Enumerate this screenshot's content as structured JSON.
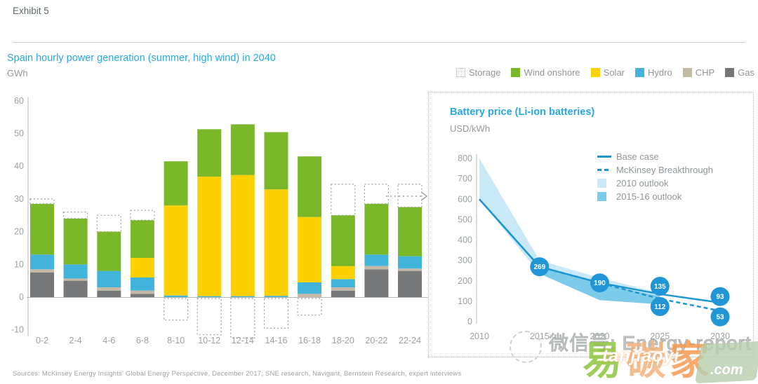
{
  "page": {
    "exhibit_label": "Exhibit 5"
  },
  "gen_chart": {
    "title": "Spain hourly power generation (summer, high wind) in 2040",
    "unit": "GWh",
    "legend": [
      {
        "label": "Storage",
        "type": "dotted",
        "color": "#ffffff"
      },
      {
        "label": "Wind onshore",
        "type": "solid",
        "color": "#7ab829"
      },
      {
        "label": "Solar",
        "type": "solid",
        "color": "#fdd000"
      },
      {
        "label": "Hydro",
        "type": "solid",
        "color": "#42b4dc"
      },
      {
        "label": "CHP",
        "type": "solid",
        "color": "#c5b8a5"
      },
      {
        "label": "Gas",
        "type": "solid",
        "color": "#757779"
      }
    ]
  },
  "battery_panel": {
    "title": "Battery price (Li-ion batteries)",
    "unit": "USD/kWh",
    "legend": [
      {
        "label": "Base case",
        "type": "line"
      },
      {
        "label": "McKinsey Breakthrough",
        "type": "dashed-line"
      },
      {
        "label": "2010 outlook",
        "type": "square",
        "color": "#c9e8f8"
      },
      {
        "label": "2015-16 outlook",
        "type": "square",
        "color": "#7ccbeb"
      }
    ]
  },
  "footer": {
    "sources": "Sources: McKinsey Energy Insights' Global Energy Perspective, December 2017; SNE research, Navigant, Bernstein Research, expert interviews"
  },
  "watermarks": {
    "wechat": "微信号: Energy-report",
    "glyph1": "易",
    "glyph2": "碳",
    "glyph3": "家",
    "tanjiaoyi": "tanjiaoyi",
    "com": ".com"
  },
  "chart_data": [
    {
      "type": "bar",
      "stacked": true,
      "title": "Spain hourly power generation (summer, high wind) in 2040",
      "ylabel": "GWh",
      "ylim": [
        -10,
        60
      ],
      "ytick_step": 10,
      "grid": false,
      "categories": [
        "0-2",
        "2-4",
        "4-6",
        "6-8",
        "8-10",
        "10-12",
        "12-14",
        "14-16",
        "16-18",
        "18-20",
        "20-22",
        "22-24"
      ],
      "series": [
        {
          "name": "Gas",
          "color": "#757779",
          "values": [
            7.5,
            5,
            2,
            1,
            0,
            0,
            0,
            0,
            0,
            2,
            8.5,
            8
          ]
        },
        {
          "name": "CHP",
          "color": "#c5b8a5",
          "values": [
            1,
            0.7,
            1,
            1,
            0,
            0,
            0,
            0,
            1,
            1,
            1,
            0.7
          ]
        },
        {
          "name": "Hydro",
          "color": "#42b4dc",
          "values": [
            4.5,
            4.3,
            5,
            4,
            0.5,
            0.3,
            0.3,
            0.4,
            3.5,
            2.5,
            3.5,
            3.8
          ]
        },
        {
          "name": "Solar",
          "color": "#fdd000",
          "values": [
            0,
            0,
            0,
            6,
            27.5,
            36.5,
            37,
            32.5,
            20,
            4,
            0,
            0
          ]
        },
        {
          "name": "Wind onshore",
          "color": "#7ab829",
          "values": [
            15.5,
            14,
            12,
            11.5,
            13.5,
            14.5,
            15.5,
            17.5,
            18.5,
            15.5,
            15.5,
            15
          ]
        }
      ],
      "storage_dashed": {
        "above": [
          30,
          26,
          25,
          26.5,
          null,
          null,
          null,
          null,
          null,
          34.5,
          34.5,
          34.5
        ],
        "below": [
          null,
          null,
          null,
          null,
          -7,
          -11.5,
          -12.5,
          -9.5,
          -5.5,
          null,
          null,
          null
        ]
      }
    },
    {
      "type": "line",
      "title": "Battery price (Li-ion batteries)",
      "ylabel": "USD/kWh",
      "ylim": [
        0,
        800
      ],
      "ytick_step": 100,
      "x": [
        2010,
        2015,
        2020,
        2025,
        2030
      ],
      "series": [
        {
          "name": "Base case",
          "style": "solid",
          "color": "#1b96d1",
          "values": [
            600,
            269,
            190,
            135,
            93
          ]
        },
        {
          "name": "McKinsey Breakthrough",
          "style": "dashed",
          "color": "#1b96d1",
          "values": [
            600,
            269,
            190,
            112,
            53
          ]
        }
      ],
      "bands": [
        {
          "name": "2010 outlook",
          "color": "#c9e8f8",
          "x": [
            2010,
            2015,
            2020,
            2025
          ],
          "upper": [
            800,
            300,
            215,
            140
          ],
          "lower": [
            600,
            235,
            150,
            95
          ]
        },
        {
          "name": "2015-16 outlook",
          "color": "#7ccbeb",
          "x": [
            2015,
            2020,
            2025
          ],
          "upper": [
            265,
            185,
            125
          ],
          "lower": [
            235,
            105,
            85
          ]
        }
      ],
      "point_labels": [
        {
          "x": 2015,
          "value": 269
        },
        {
          "x": 2020,
          "value": 190
        },
        {
          "x": 2025,
          "value": 135
        },
        {
          "x": 2025,
          "value": 112
        },
        {
          "x": 2030,
          "value": 93
        },
        {
          "x": 2030,
          "value": 53
        }
      ],
      "label_circle_color": "#2196d6"
    }
  ]
}
